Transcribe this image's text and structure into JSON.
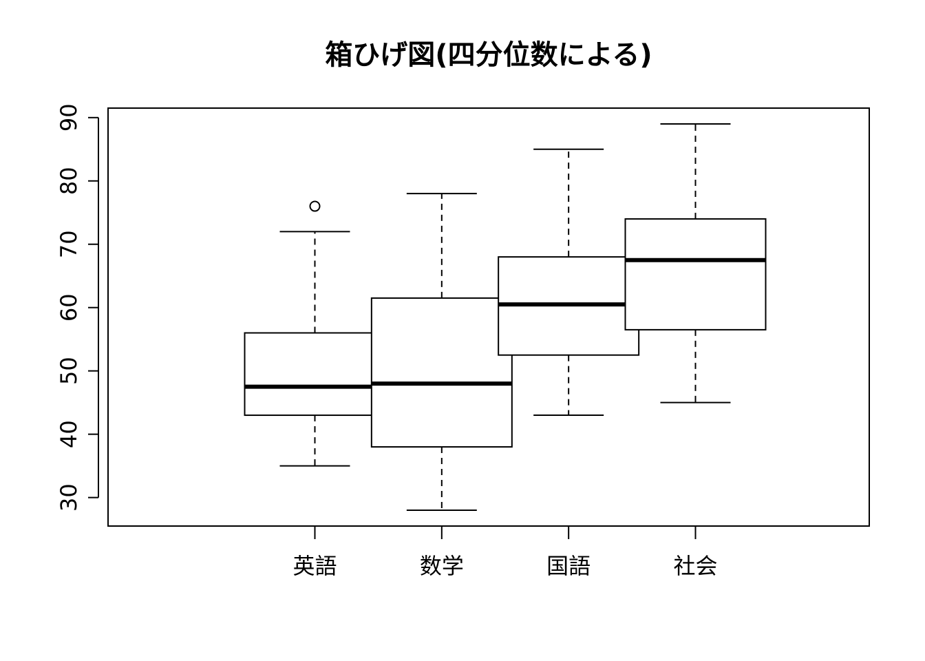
{
  "chart_data": {
    "type": "box",
    "title": "箱ひげ図(四分位数による)",
    "xlabel": "",
    "ylabel": "",
    "ylim": [
      25.5,
      91.5
    ],
    "yticks": [
      30,
      40,
      50,
      60,
      70,
      80,
      90
    ],
    "grid": false,
    "categories": [
      "英語",
      "数学",
      "国語",
      "社会"
    ],
    "boxes": [
      {
        "category": "英語",
        "whisker_low": 35,
        "q1": 43,
        "median": 47.5,
        "q3": 56,
        "whisker_high": 72,
        "outliers": [
          76
        ]
      },
      {
        "category": "数学",
        "whisker_low": 28,
        "q1": 38,
        "median": 48,
        "q3": 61.5,
        "whisker_high": 78,
        "outliers": []
      },
      {
        "category": "国語",
        "whisker_low": 43,
        "q1": 52.5,
        "median": 60.5,
        "q3": 68,
        "whisker_high": 85,
        "outliers": []
      },
      {
        "category": "社会",
        "whisker_low": 45,
        "q1": 56.5,
        "median": 67.5,
        "q3": 74,
        "whisker_high": 89,
        "outliers": []
      }
    ]
  }
}
